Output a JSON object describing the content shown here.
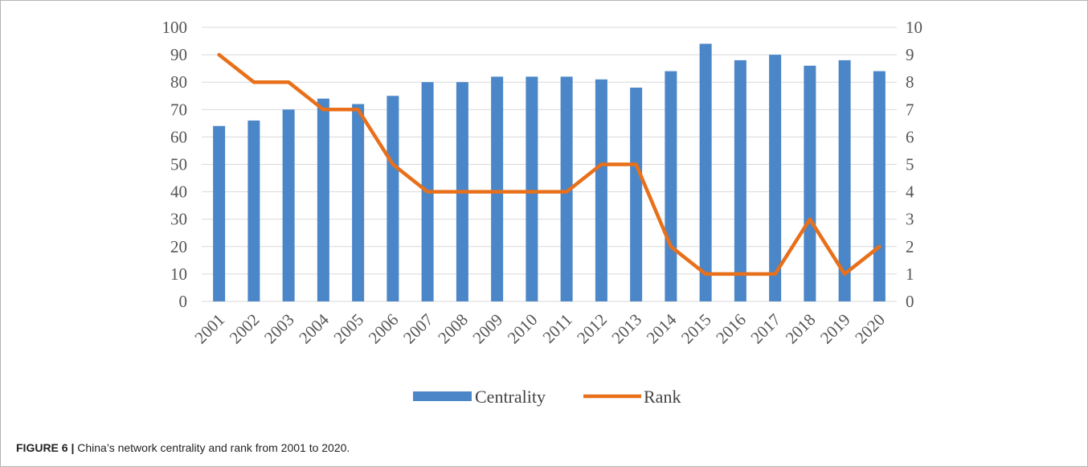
{
  "chart_data": {
    "type": "bar",
    "categories": [
      "2001",
      "2002",
      "2003",
      "2004",
      "2005",
      "2006",
      "2007",
      "2008",
      "2009",
      "2010",
      "2011",
      "2012",
      "2013",
      "2014",
      "2015",
      "2016",
      "2017",
      "2018",
      "2019",
      "2020"
    ],
    "series": [
      {
        "name": "Centrality",
        "type": "bar",
        "axis": "left",
        "color": "#4a86c8",
        "values": [
          64,
          66,
          70,
          74,
          72,
          75,
          80,
          80,
          82,
          82,
          82,
          81,
          78,
          84,
          94,
          88,
          90,
          86,
          88,
          84
        ]
      },
      {
        "name": "Rank",
        "type": "line",
        "axis": "right",
        "color": "#e8701a",
        "values": [
          9,
          8,
          8,
          7,
          7,
          5,
          4,
          4,
          4,
          4,
          4,
          5,
          5,
          2,
          1,
          1,
          1,
          3,
          1,
          2
        ]
      }
    ],
    "y_left": {
      "ylim": [
        0,
        100
      ],
      "ticks": [
        "0",
        "10",
        "20",
        "30",
        "40",
        "50",
        "60",
        "70",
        "80",
        "90",
        "100"
      ]
    },
    "y_right": {
      "ylim": [
        0,
        10
      ],
      "ticks": [
        "0",
        "1",
        "2",
        "3",
        "4",
        "5",
        "6",
        "7",
        "8",
        "9",
        "10"
      ]
    },
    "grid": true,
    "legend_position": "bottom",
    "title": "",
    "xlabel": "",
    "ylabel": ""
  },
  "caption": {
    "label": "FIGURE 6 |",
    "text": " China’s network centrality and rank from 2001 to 2020."
  }
}
